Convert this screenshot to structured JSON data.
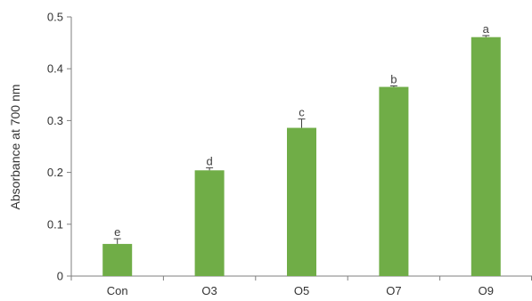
{
  "chart_data": {
    "type": "bar",
    "title": "",
    "xlabel": "",
    "ylabel": "Absorbance at 700 nm",
    "ylim": [
      0,
      0.5
    ],
    "yticks": [
      "0",
      "0.1",
      "0.2",
      "0.3",
      "0.4",
      "0.5"
    ],
    "grid": false,
    "legend": "none",
    "bar_color": "#70ad47",
    "categories": [
      "Con",
      "O3",
      "O5",
      "O7",
      "O9"
    ],
    "values": [
      0.062,
      0.204,
      0.286,
      0.365,
      0.461
    ],
    "errors": [
      0.01,
      0.005,
      0.017,
      0.002,
      0.003
    ],
    "significance_labels": [
      "e",
      "d",
      "c",
      "b",
      "a"
    ]
  }
}
